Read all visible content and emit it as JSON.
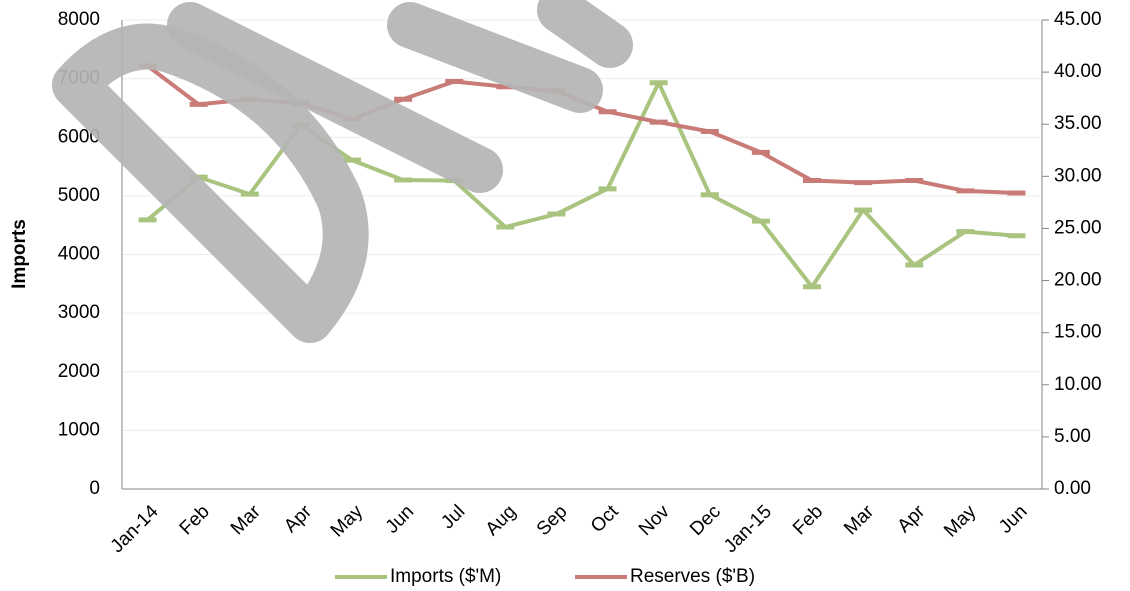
{
  "chart_data": {
    "type": "line",
    "y_label": "Imports",
    "categories": [
      "Jan-14",
      "Feb",
      "Mar",
      "Apr",
      "May",
      "Jun",
      "Jul",
      "Aug",
      "Sep",
      "Oct",
      "Nov",
      "Dec",
      "Jan-15",
      "Feb",
      "Mar",
      "Apr",
      "May",
      "Jun"
    ],
    "series": [
      {
        "name": "Imports ($'M)",
        "color": "#a9c47f",
        "values": [
          4590,
          5320,
          5030,
          6210,
          5610,
          5270,
          5260,
          4470,
          4690,
          5120,
          6930,
          5020,
          4570,
          3450,
          4760,
          3820,
          4390,
          4320
        ]
      },
      {
        "name": "Reserves ($'B)",
        "color": "#c97b78",
        "axis": "y2",
        "values": [
          40.6,
          36.9,
          37.4,
          37.0,
          35.5,
          37.4,
          39.1,
          38.6,
          38.2,
          36.2,
          35.2,
          34.3,
          32.3,
          29.6,
          29.4,
          29.6,
          28.6,
          28.4
        ]
      }
    ],
    "ylim": [
      0,
      8000
    ],
    "yticks": [
      0,
      1000,
      2000,
      3000,
      4000,
      5000,
      6000,
      7000,
      8000
    ],
    "y2lim": [
      0,
      45
    ],
    "y2ticks": [
      {
        "value": 0,
        "label": "0.00"
      },
      {
        "value": 5,
        "label": "5.00"
      },
      {
        "value": 10,
        "label": "10.00"
      },
      {
        "value": 15,
        "label": "15.00"
      },
      {
        "value": 20,
        "label": "20.00"
      },
      {
        "value": 25,
        "label": "25.00"
      },
      {
        "value": 30,
        "label": "30.00"
      },
      {
        "value": 35,
        "label": "35.00"
      },
      {
        "value": 40,
        "label": "40.00"
      },
      {
        "value": 45,
        "label": "45.00"
      }
    ],
    "grid": true,
    "legend": "bottom"
  }
}
